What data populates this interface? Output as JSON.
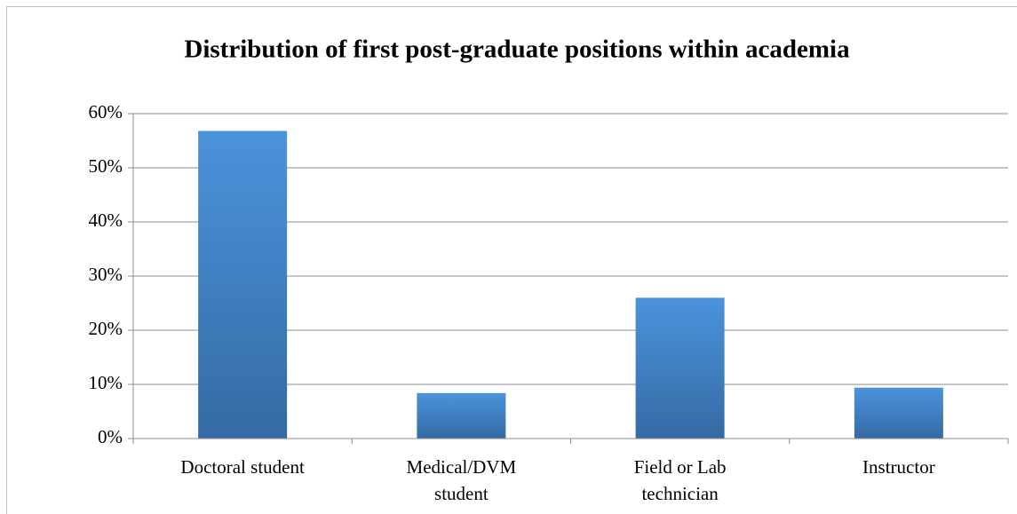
{
  "chart_data": {
    "type": "bar",
    "title": "Distribution of first post-graduate positions within academia",
    "categories": [
      "Doctoral student",
      "Medical/DVM student",
      "Field or Lab technician",
      "Instructor"
    ],
    "values": [
      56.8,
      8.4,
      26,
      9.4
    ],
    "color": "#4a8fd4",
    "ylim": [
      0,
      60
    ],
    "yticks": [
      {
        "value": 0,
        "label": "0%"
      },
      {
        "value": 10,
        "label": "10%"
      },
      {
        "value": 20,
        "label": "20%"
      },
      {
        "value": 30,
        "label": "30%"
      },
      {
        "value": 40,
        "label": "40%"
      },
      {
        "value": 50,
        "label": "50%"
      },
      {
        "value": 60,
        "label": "60%"
      }
    ],
    "grid": true
  }
}
